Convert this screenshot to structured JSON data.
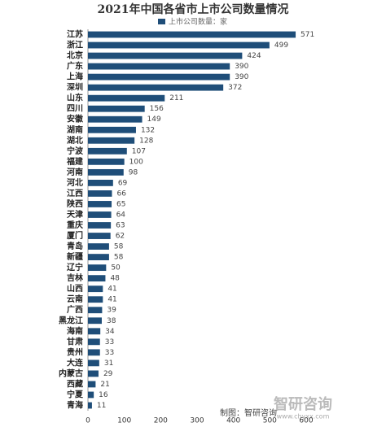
{
  "chart_data": {
    "type": "bar",
    "orientation": "horizontal",
    "title": "2021年中国各省市上市公司数量情况",
    "categories": [
      "江苏",
      "浙江",
      "北京",
      "广东",
      "上海",
      "深圳",
      "山东",
      "四川",
      "安徽",
      "湖南",
      "湖北",
      "宁波",
      "福建",
      "河南",
      "河北",
      "江西",
      "陕西",
      "天津",
      "重庆",
      "厦门",
      "青岛",
      "新疆",
      "辽宁",
      "吉林",
      "山西",
      "云南",
      "广西",
      "黑龙江",
      "海南",
      "甘肃",
      "贵州",
      "大连",
      "内蒙古",
      "西藏",
      "宁夏",
      "青海"
    ],
    "series": [
      {
        "name": "上市公司数量：家",
        "color": "#1f4e79",
        "values": [
          571,
          499,
          424,
          390,
          390,
          372,
          211,
          156,
          149,
          132,
          128,
          107,
          100,
          98,
          69,
          66,
          65,
          64,
          63,
          62,
          58,
          58,
          50,
          48,
          41,
          41,
          39,
          38,
          34,
          33,
          33,
          31,
          29,
          21,
          16,
          11
        ]
      }
    ],
    "xlim": [
      0,
      600
    ],
    "xticks": [
      0,
      100,
      200,
      300,
      400,
      500,
      600
    ],
    "grid": false,
    "legend": "top",
    "source": "制图：智研咨询",
    "watermark": "智研咨询",
    "website": "www.chyxx.com"
  }
}
